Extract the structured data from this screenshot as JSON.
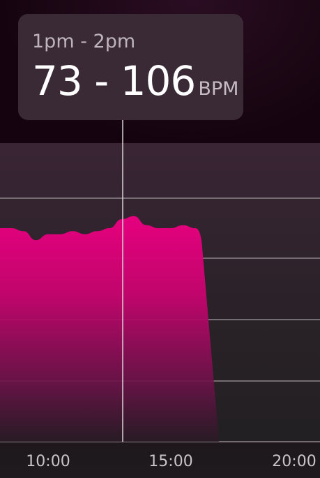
{
  "tooltip": {
    "time_range": "1pm - 2pm",
    "value": "73 - 106",
    "unit": "BPM"
  },
  "colors": {
    "accent": "#e6007e",
    "tooltip_bg": "#3a2a36",
    "grid": "#9c9299"
  },
  "chart_data": {
    "type": "area",
    "title": "",
    "xlabel": "",
    "ylabel": "",
    "x_tick_labels": [
      "10:00",
      "15:00",
      "20:00"
    ],
    "selected_hour": "1pm - 2pm",
    "series": [
      {
        "x": [
          "08:30",
          "09:00",
          "09:30",
          "10:00",
          "10:30",
          "11:00",
          "11:30",
          "12:00",
          "12:30",
          "13:00",
          "13:30",
          "14:00",
          "14:30",
          "15:00",
          "15:30",
          "16:00"
        ],
        "values": [
          100,
          99,
          96,
          98,
          98,
          99,
          98,
          99,
          100,
          103,
          104,
          101,
          100,
          100,
          101,
          100
        ]
      }
    ]
  }
}
